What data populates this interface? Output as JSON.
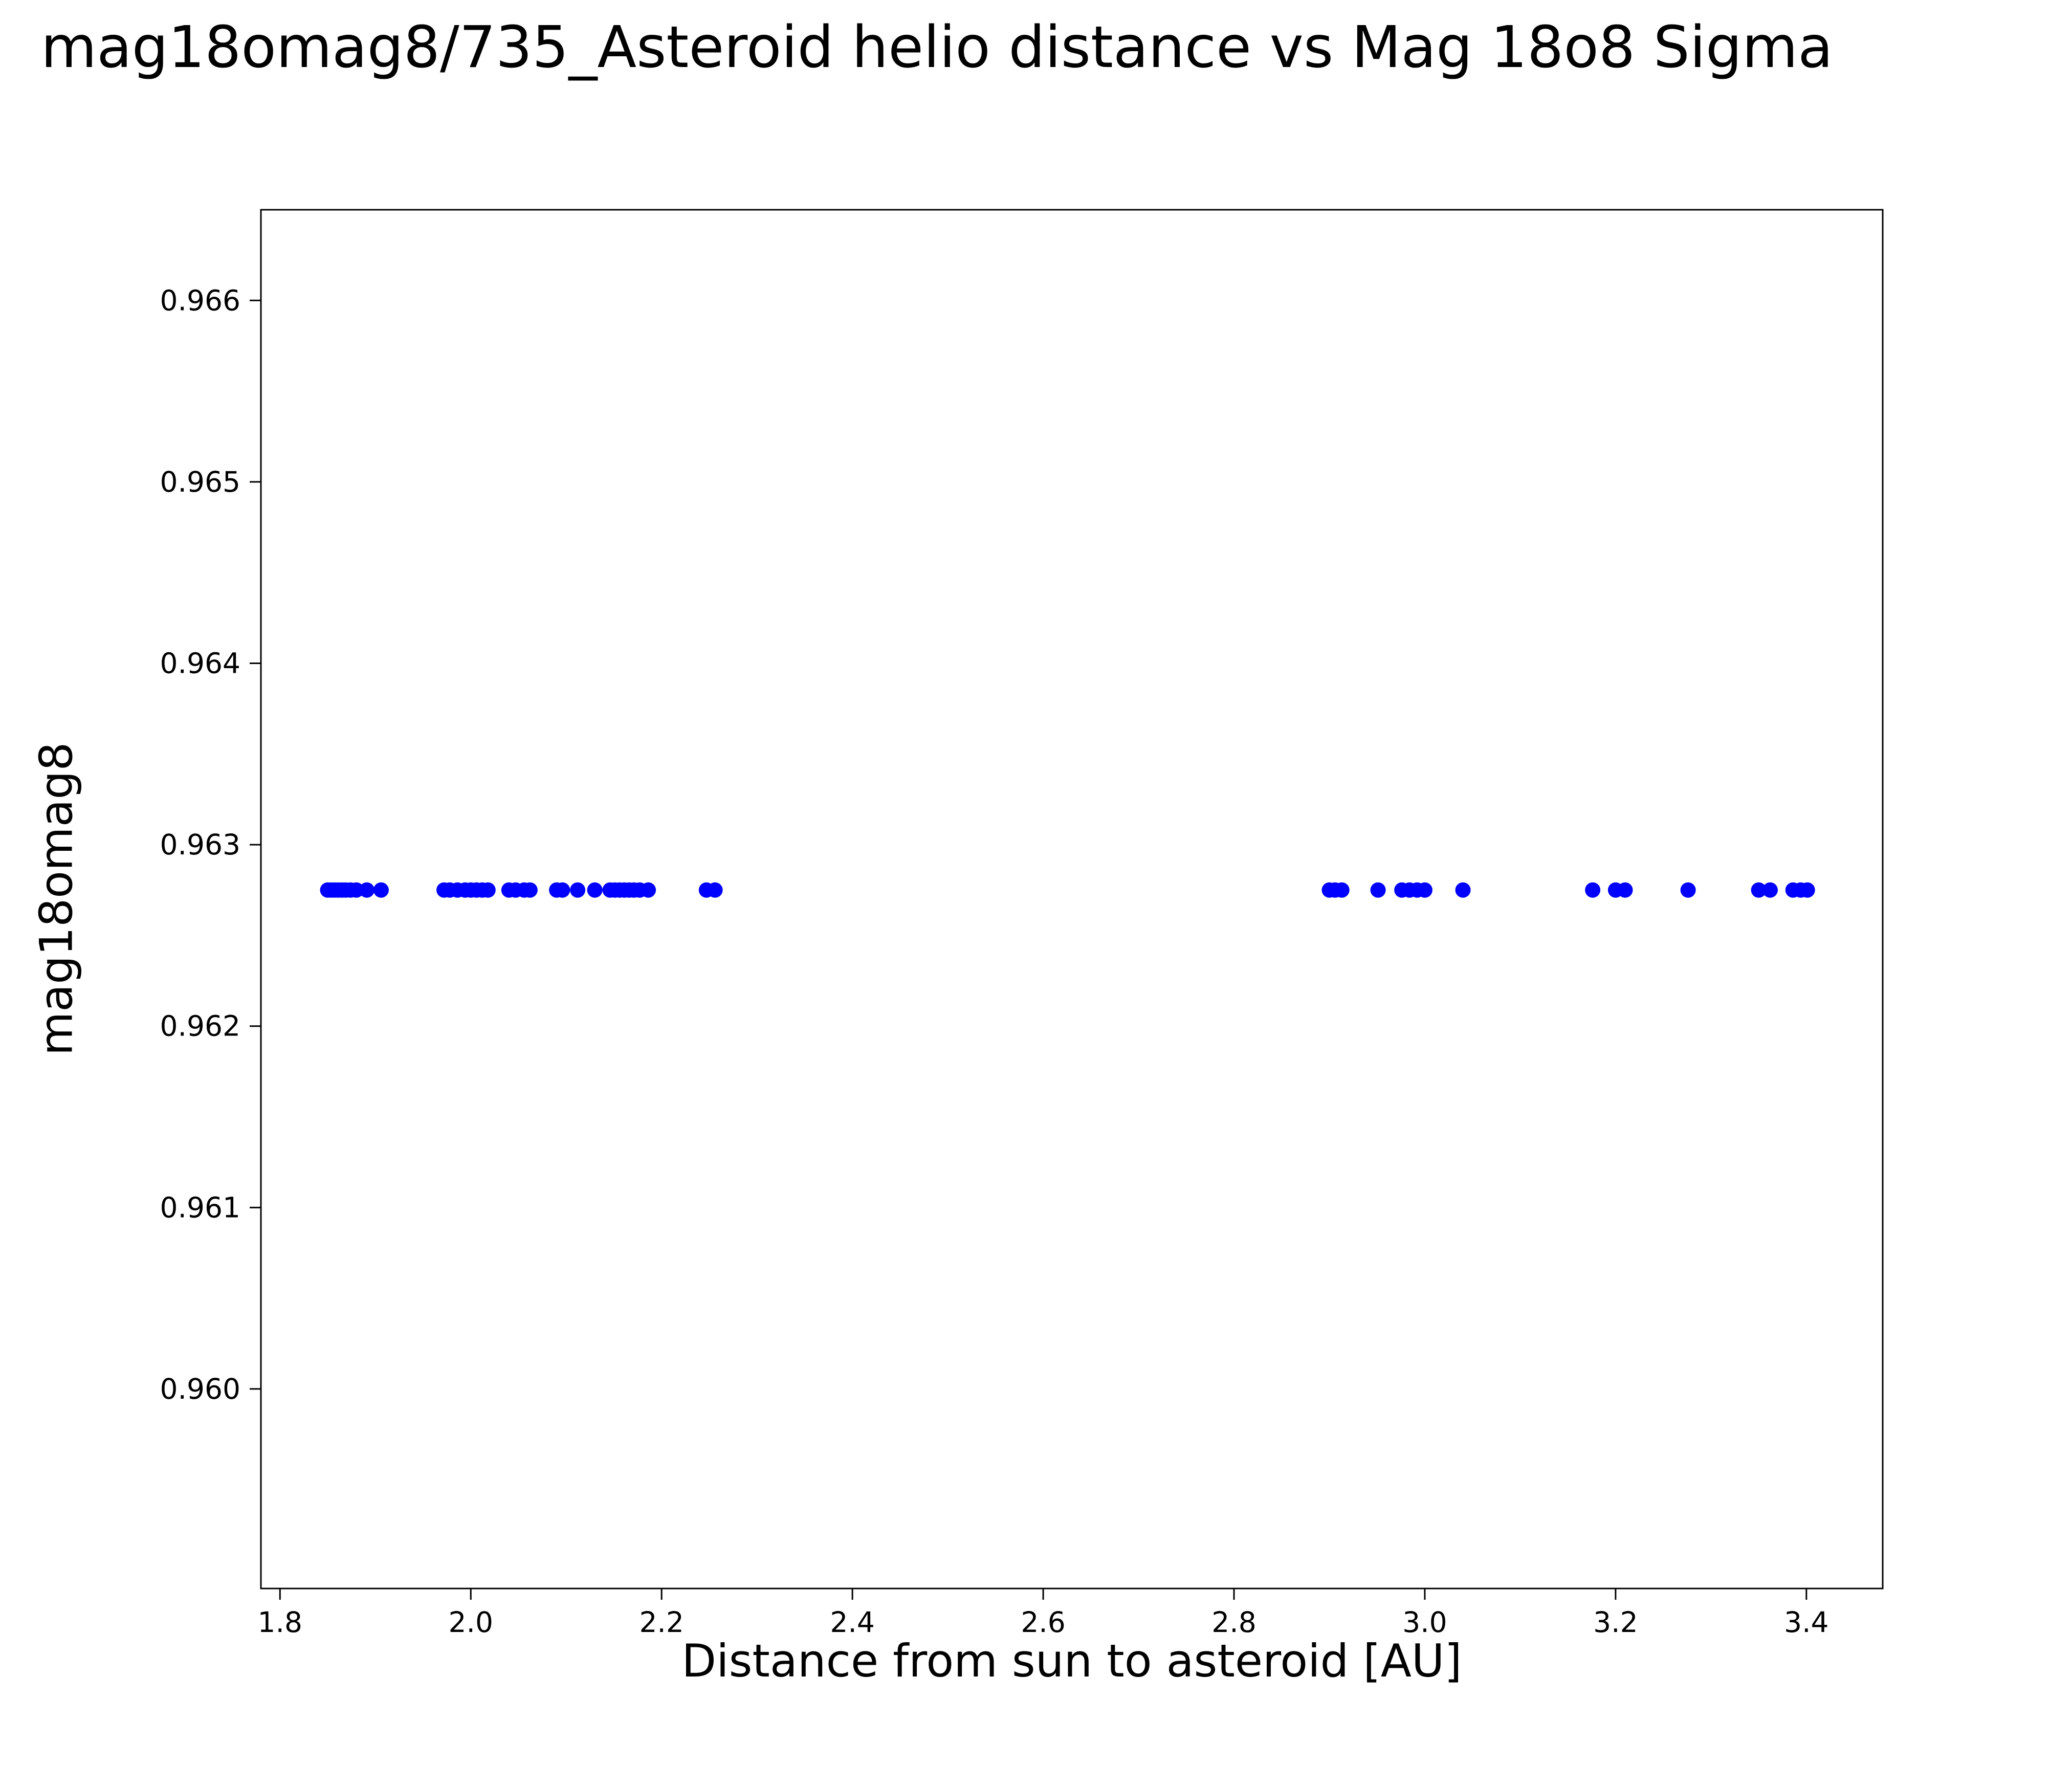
{
  "chart_data": {
    "type": "scatter",
    "title": "mag18omag8/735_Asteroid helio distance vs Mag 18o8 Sigma",
    "xlabel": "Distance from sun to asteroid [AU]",
    "ylabel": "mag18omag8",
    "xlim": [
      1.78,
      3.48
    ],
    "ylim": [
      0.9589,
      0.9665
    ],
    "x_ticks": [
      1.8,
      2.0,
      2.2,
      2.4,
      2.6,
      2.8,
      3.0,
      3.2,
      3.4
    ],
    "y_ticks": [
      0.96,
      0.961,
      0.962,
      0.963,
      0.964,
      0.965,
      0.966
    ],
    "marker_color": "#0000ff",
    "grid": false,
    "legend": "none",
    "y_value": 0.96275,
    "x": [
      1.85,
      1.853,
      1.857,
      1.861,
      1.865,
      1.869,
      1.874,
      1.88,
      1.891,
      1.906,
      1.972,
      1.978,
      1.986,
      1.994,
      2.0,
      2.006,
      2.012,
      2.018,
      2.04,
      2.047,
      2.056,
      2.062,
      2.09,
      2.096,
      2.112,
      2.13,
      2.146,
      2.151,
      2.156,
      2.161,
      2.166,
      2.171,
      2.177,
      2.186,
      2.247,
      2.256,
      2.9,
      2.906,
      2.913,
      2.951,
      2.976,
      2.984,
      2.992,
      3.0,
      3.04,
      3.176,
      3.2,
      3.21,
      3.276,
      3.35,
      3.362,
      3.386,
      3.394,
      3.401
    ]
  }
}
